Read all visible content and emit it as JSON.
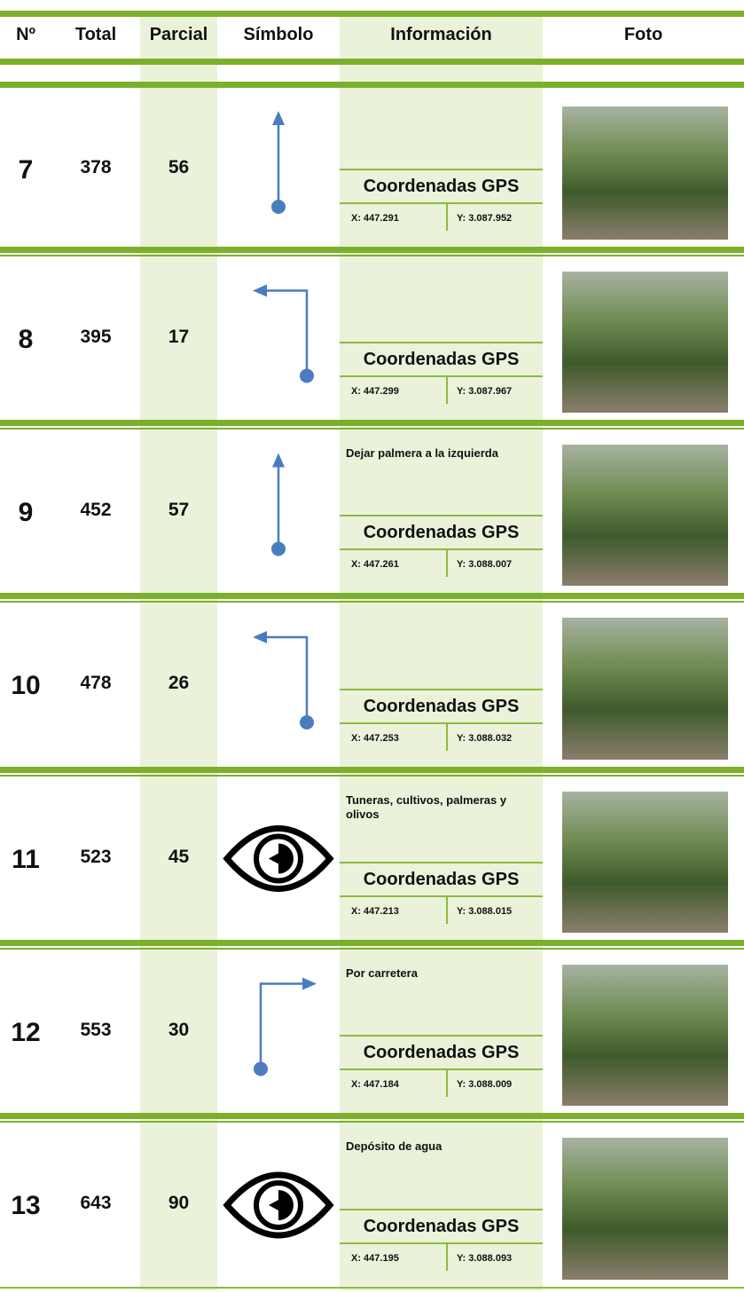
{
  "header": [
    "Nº",
    "Total",
    "Parcial",
    "Símbolo",
    "Información",
    "Foto"
  ],
  "rows": [
    {
      "n": 7,
      "total": 378,
      "partial": 56,
      "gps_title": "Coordenadas GPS",
      "x": "X: 447.291",
      "y": "Y: 3.087.952"
    },
    {
      "n": 8,
      "total": 395,
      "partial": 17,
      "gps_title": "Coordenadas GPS",
      "x": "X: 447.299",
      "y": "Y: 3.087.967"
    },
    {
      "n": 9,
      "total": 452,
      "partial": 57,
      "info": "Dejar palmera a la izquierda",
      "gps_title": "Coordenadas GPS",
      "x": "X: 447.261",
      "y": "Y: 3.088.007"
    },
    {
      "n": 10,
      "total": 478,
      "partial": 26,
      "gps_title": "Coordenadas GPS",
      "x": "X: 447.253",
      "y": "Y: 3.088.032"
    },
    {
      "n": 11,
      "total": 523,
      "partial": 45,
      "info": "Tuneras, cultivos, palmeras y olivos",
      "gps_title": "Coordenadas GPS",
      "x": "X: 447.213",
      "y": "Y: 3.088.015"
    },
    {
      "n": 12,
      "total": 553,
      "partial": 30,
      "info": "Por carretera",
      "gps_title": "Coordenadas GPS",
      "x": "X: 447.184",
      "y": "Y: 3.088.009"
    },
    {
      "n": 13,
      "total": 643,
      "partial": 90,
      "info": "Depósito de agua",
      "gps_title": "Coordenadas GPS",
      "x": "X: 447.195",
      "y": "Y: 3.088.093"
    }
  ]
}
